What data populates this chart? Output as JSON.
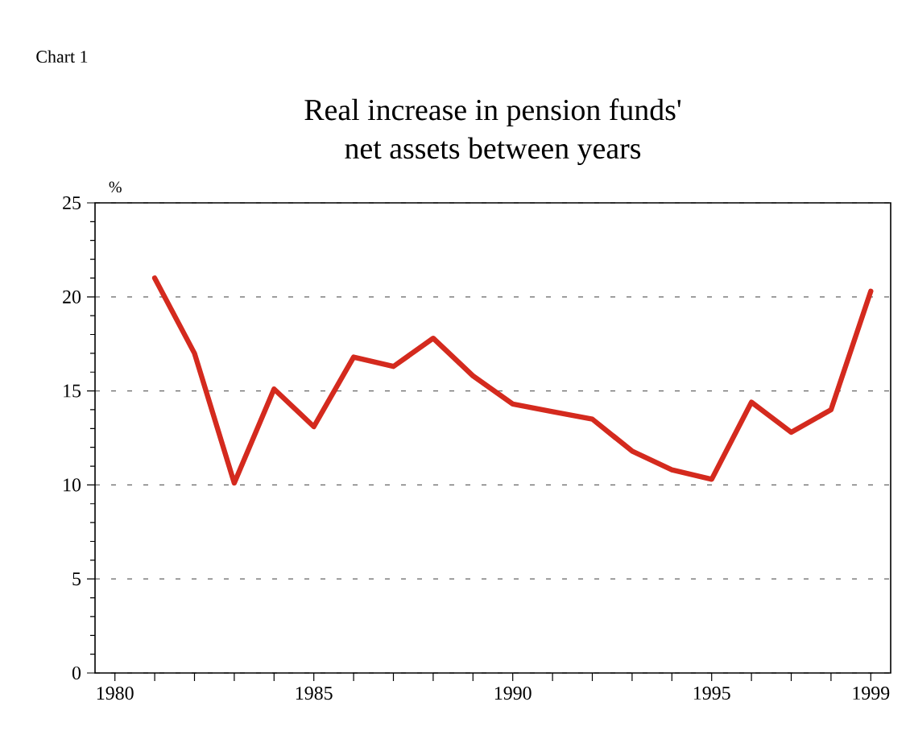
{
  "chart_data": {
    "type": "line",
    "title": "Real increase in pension funds'\nnet assets between years",
    "ylabel": "%",
    "annotations": [
      "Chart 1"
    ],
    "x": [
      1981,
      1982,
      1983,
      1984,
      1985,
      1986,
      1987,
      1988,
      1989,
      1990,
      1991,
      1992,
      1993,
      1994,
      1995,
      1996,
      1997,
      1998,
      1999
    ],
    "series": [
      {
        "color": "#d42a1e",
        "values": [
          21.0,
          17.0,
          10.1,
          15.1,
          13.1,
          16.8,
          16.3,
          17.8,
          15.8,
          14.3,
          13.9,
          13.5,
          11.8,
          10.8,
          10.3,
          14.4,
          12.8,
          14.0,
          20.3
        ]
      }
    ],
    "xlim": [
      1979.5,
      1999.5
    ],
    "xticks": [
      1980,
      {
        "value": 1981,
        "label": null
      },
      {
        "value": 1982,
        "label": null
      },
      {
        "value": 1983,
        "label": null
      },
      {
        "value": 1984,
        "label": null
      },
      1985,
      {
        "value": 1986,
        "label": null
      },
      {
        "value": 1987,
        "label": null
      },
      {
        "value": 1988,
        "label": null
      },
      {
        "value": 1989,
        "label": null
      },
      1990,
      {
        "value": 1991,
        "label": null
      },
      {
        "value": 1992,
        "label": null
      },
      {
        "value": 1993,
        "label": null
      },
      {
        "value": 1994,
        "label": null
      },
      1995,
      {
        "value": 1996,
        "label": null
      },
      {
        "value": 1997,
        "label": null
      },
      {
        "value": 1998,
        "label": null
      },
      1999
    ],
    "ylim": [
      0,
      25
    ],
    "yticks": [
      0,
      5,
      10,
      15,
      20,
      25
    ],
    "grid": "y",
    "marker": "none",
    "line_style": "solid"
  }
}
